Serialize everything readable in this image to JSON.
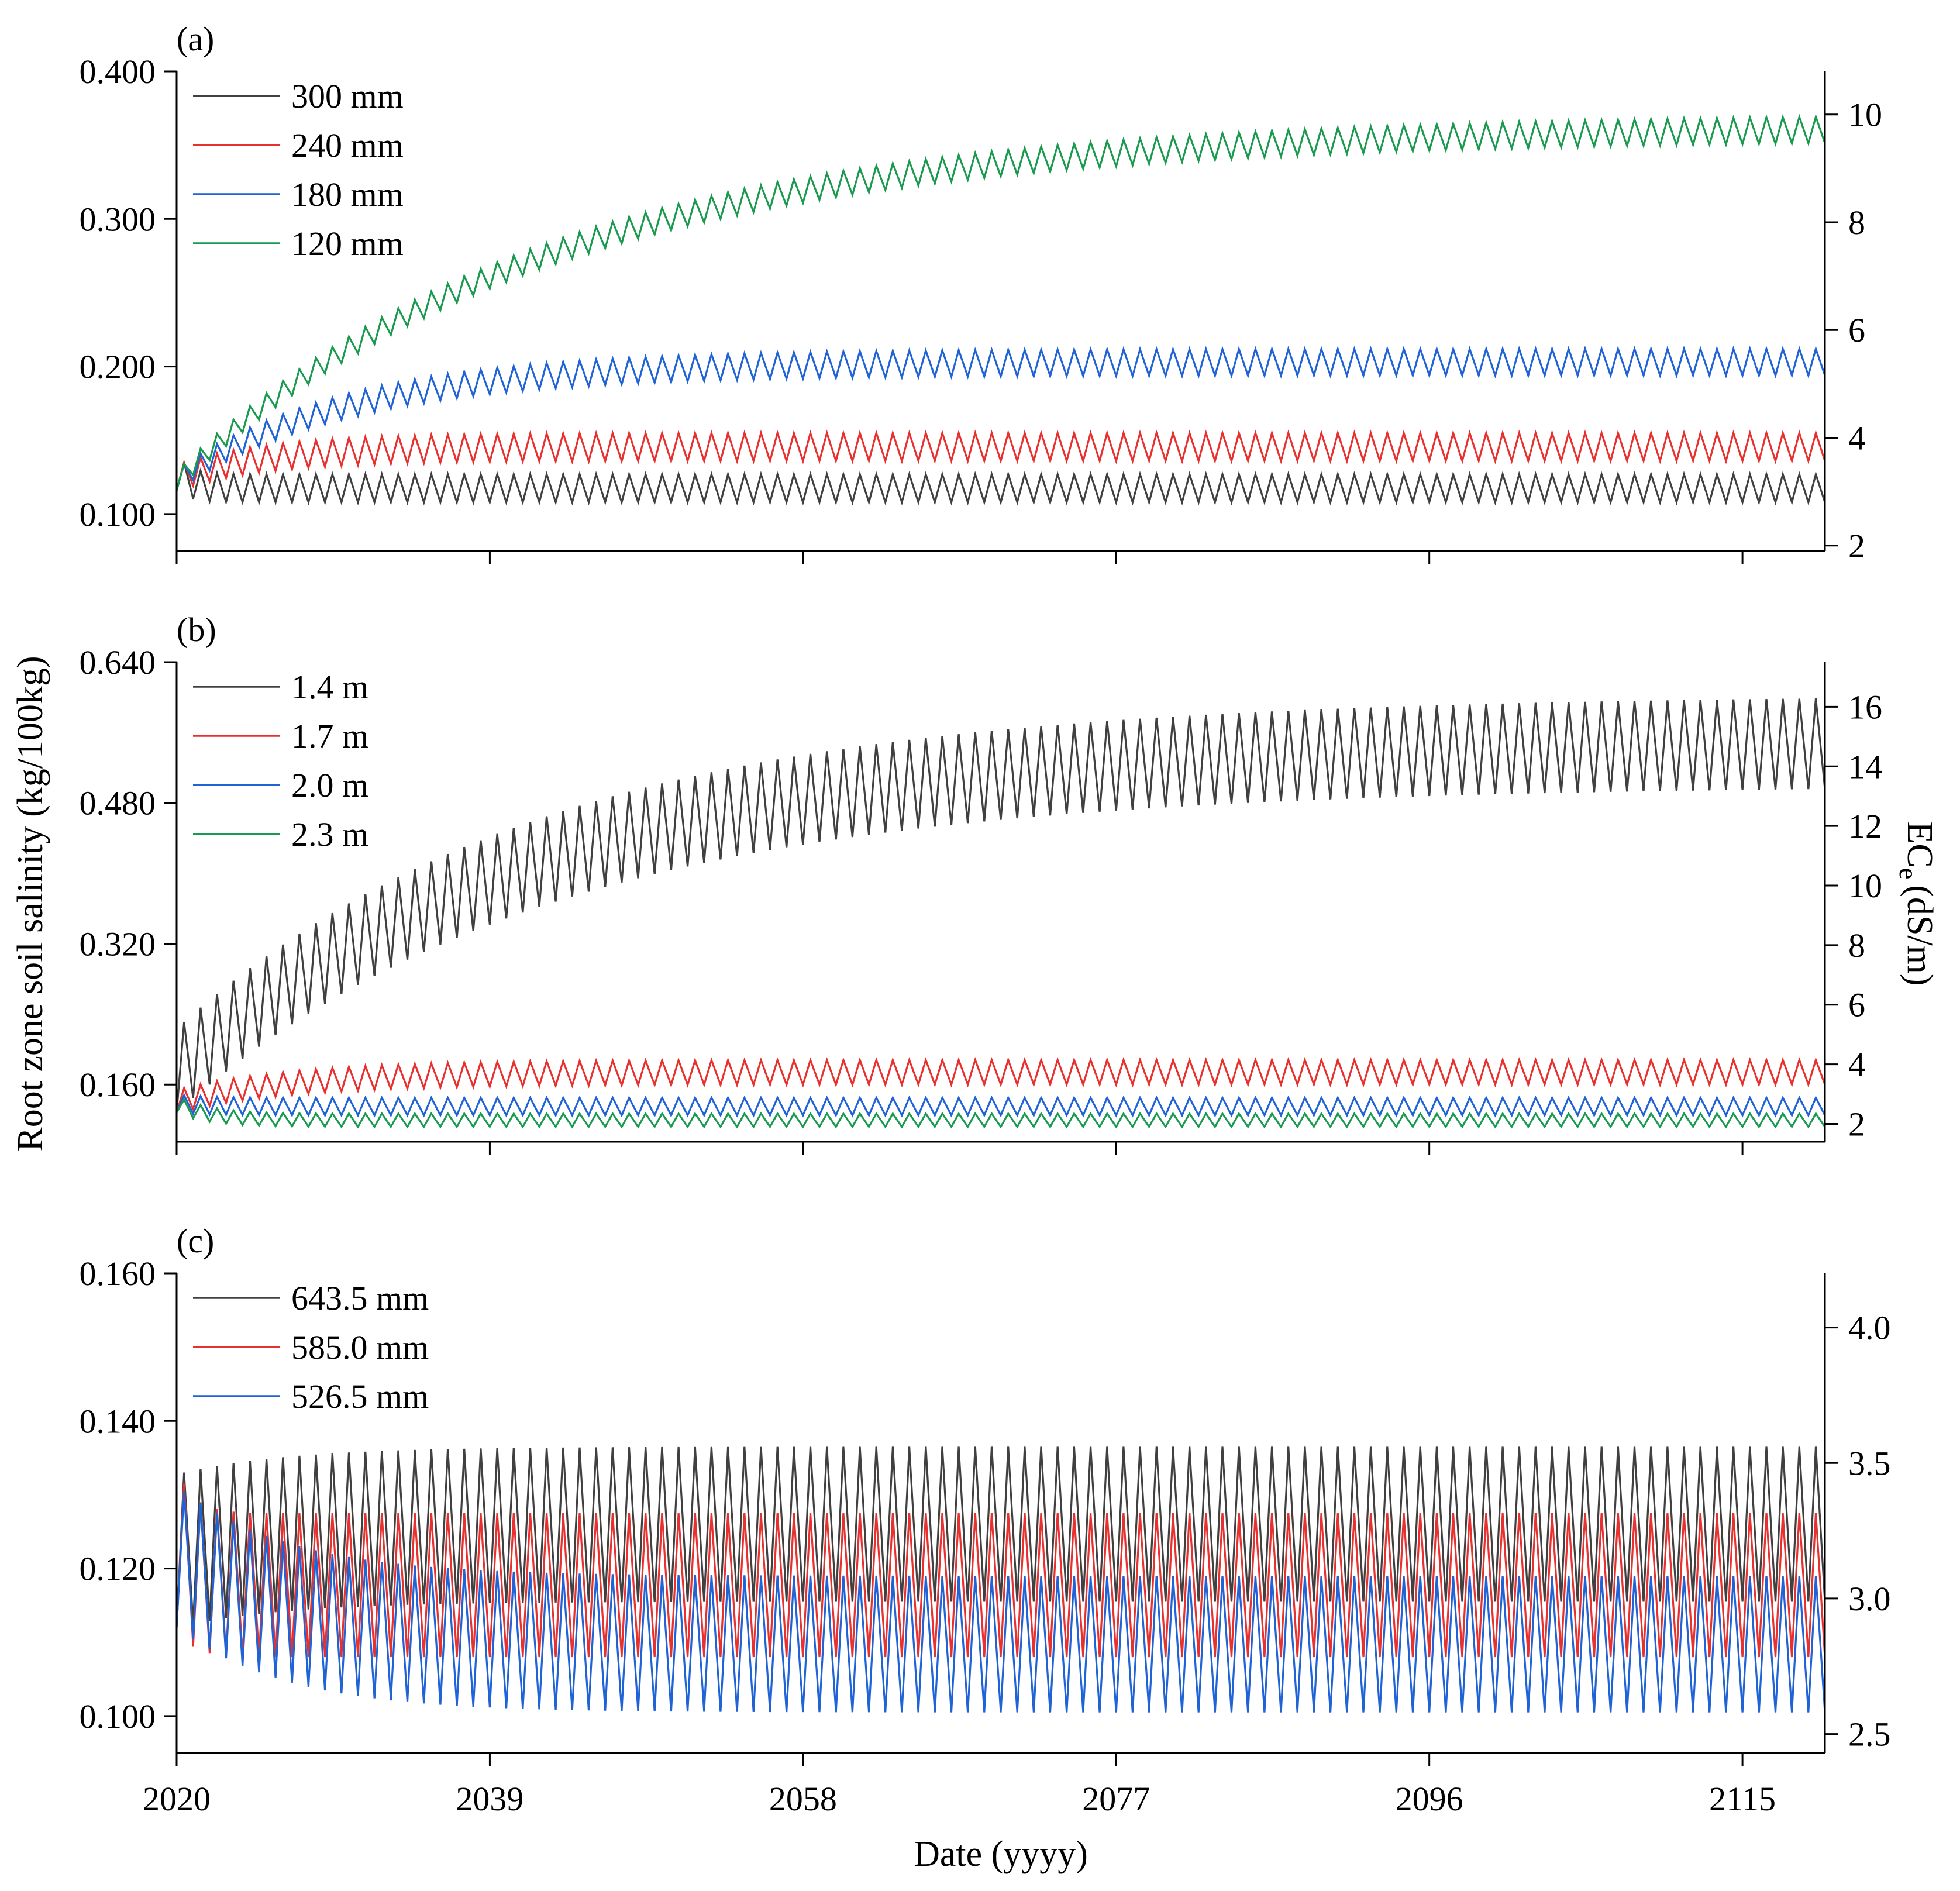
{
  "chart_data": {
    "type": "line",
    "title": "",
    "xlabel": "Date (yyyy)",
    "ylabel_left": "Root zone soil salinity (kg/100kg)",
    "ylabel_right_main": "EC",
    "ylabel_right_sub": "e",
    "ylabel_right_unit": "(dS/m)",
    "xlim": [
      2020,
      2120
    ],
    "xticks": [
      2020,
      2039,
      2058,
      2077,
      2096,
      2115
    ],
    "xtick_labels": [
      "2020",
      "2039",
      "2058",
      "2077",
      "2096",
      "2115"
    ],
    "panels": [
      {
        "label": "(a)",
        "ylim": [
          0.075,
          0.4
        ],
        "yticks": [
          0.1,
          0.2,
          0.3,
          0.4
        ],
        "ytick_labels": [
          "0.100",
          "0.200",
          "0.300",
          "0.400"
        ],
        "y2lim": [
          1.9,
          10.8
        ],
        "y2ticks": [
          2,
          4,
          6,
          8,
          10
        ],
        "y2tick_labels": [
          "2",
          "4",
          "6",
          "8",
          "10"
        ],
        "legend_position": "top-left",
        "series": [
          {
            "name": "300 mm",
            "color": "#404040",
            "start": 0.116,
            "min_end": 0.108,
            "max_end": 0.127,
            "rate": 1.2
          },
          {
            "name": "240 mm",
            "color": "#e8312f",
            "start": 0.116,
            "min_end": 0.136,
            "max_end": 0.155,
            "rate": 0.18
          },
          {
            "name": "180 mm",
            "color": "#1f63d6",
            "start": 0.116,
            "min_end": 0.194,
            "max_end": 0.212,
            "rate": 0.095
          },
          {
            "name": "120 mm",
            "color": "#1a9a4e",
            "start": 0.116,
            "min_end": 0.354,
            "max_end": 0.372,
            "rate": 0.045
          }
        ]
      },
      {
        "label": "(b)",
        "ylim": [
          0.095,
          0.64
        ],
        "yticks": [
          0.16,
          0.32,
          0.48,
          0.64
        ],
        "ytick_labels": [
          "0.160",
          "0.320",
          "0.480",
          "0.640"
        ],
        "y2lim": [
          1.4,
          17.5
        ],
        "y2ticks": [
          2,
          4,
          6,
          8,
          10,
          12,
          14,
          16
        ],
        "y2tick_labels": [
          "2",
          "4",
          "6",
          "8",
          "10",
          "12",
          "14",
          "16"
        ],
        "legend_position": "top-left",
        "series": [
          {
            "name": "1.4 m",
            "color": "#404040",
            "start": 0.128,
            "min_end": 0.5,
            "max_end": 0.603,
            "rate": 0.045
          },
          {
            "name": "1.7 m",
            "color": "#e8312f",
            "start": 0.128,
            "min_end": 0.16,
            "max_end": 0.188,
            "rate": 0.14
          },
          {
            "name": "2.0 m",
            "color": "#1f63d6",
            "start": 0.128,
            "min_end": 0.125,
            "max_end": 0.145,
            "rate": 0.5
          },
          {
            "name": "2.3 m",
            "color": "#1a9a4e",
            "start": 0.128,
            "min_end": 0.112,
            "max_end": 0.127,
            "rate": 0.5
          }
        ]
      },
      {
        "label": "(c)",
        "ylim": [
          0.095,
          0.16
        ],
        "yticks": [
          0.1,
          0.12,
          0.14,
          0.16
        ],
        "ytick_labels": [
          "0.100",
          "0.120",
          "0.140",
          "0.160"
        ],
        "y2lim": [
          2.43,
          4.2
        ],
        "y2ticks": [
          2.5,
          3.0,
          3.5,
          4.0
        ],
        "y2tick_labels": [
          "2.5",
          "3.0",
          "3.5",
          "4.0"
        ],
        "legend_position": "top-left",
        "series": [
          {
            "name": "643.5 mm",
            "color": "#404040",
            "start": 0.112,
            "min_end": 0.1155,
            "max_end": 0.1365,
            "rate": 0.15
          },
          {
            "name": "585.0 mm",
            "color": "#e8312f",
            "start": 0.112,
            "min_end": 0.108,
            "max_end": 0.1275,
            "rate": 1.0
          },
          {
            "name": "526.5 mm",
            "color": "#1f63d6",
            "start": 0.112,
            "min_end": 0.1005,
            "max_end": 0.119,
            "rate": 0.15
          }
        ]
      }
    ]
  }
}
